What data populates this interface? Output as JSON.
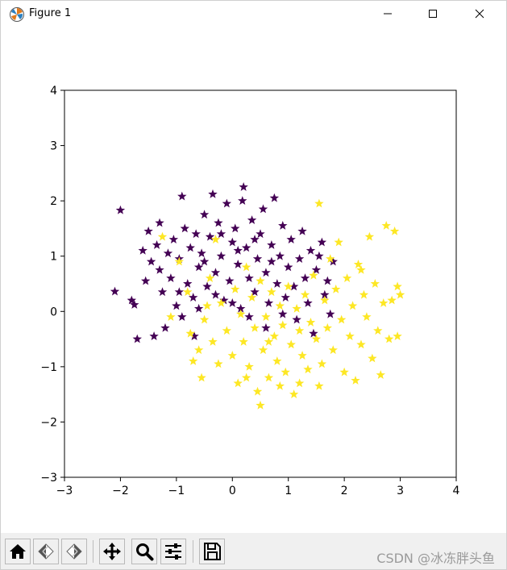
{
  "window": {
    "title": "Figure 1",
    "icon": "matplotlib-icon",
    "controls": [
      "minimize-icon",
      "maximize-icon",
      "close-icon"
    ]
  },
  "toolbar": {
    "buttons": [
      {
        "name": "home-button",
        "icon": "home-icon"
      },
      {
        "name": "back-button",
        "icon": "back-arrow-icon"
      },
      {
        "name": "forward-button",
        "icon": "forward-arrow-icon"
      },
      {
        "name": "pan-button",
        "icon": "move-arrows-icon"
      },
      {
        "name": "zoom-button",
        "icon": "magnifier-icon"
      },
      {
        "name": "configure-subplots-button",
        "icon": "sliders-icon"
      },
      {
        "name": "save-button",
        "icon": "floppy-disk-icon"
      }
    ]
  },
  "watermark": "CSDN @冰冻胖头鱼",
  "chart_data": {
    "type": "scatter",
    "marker": "star",
    "title": "",
    "xlabel": "",
    "ylabel": "",
    "xlim": [
      -3,
      4
    ],
    "ylim": [
      -3,
      4
    ],
    "xticks": [
      "−3",
      "−2",
      "−1",
      "0",
      "1",
      "2",
      "3",
      "4"
    ],
    "yticks": [
      "−3",
      "−2",
      "−1",
      "0",
      "1",
      "2",
      "3",
      "4"
    ],
    "grid": false,
    "legend": false,
    "series": [
      {
        "color": "#440154",
        "points": [
          [
            -2.0,
            1.83
          ],
          [
            -2.1,
            0.36
          ],
          [
            -1.8,
            0.2
          ],
          [
            -1.75,
            0.12
          ],
          [
            -1.7,
            -0.5
          ],
          [
            -1.55,
            0.55
          ],
          [
            -1.5,
            1.45
          ],
          [
            -1.45,
            0.9
          ],
          [
            -1.4,
            -0.45
          ],
          [
            -1.35,
            1.2
          ],
          [
            -1.3,
            0.75
          ],
          [
            -1.25,
            0.35
          ],
          [
            -1.2,
            -0.3
          ],
          [
            -1.15,
            1.05
          ],
          [
            -1.1,
            0.6
          ],
          [
            -1.05,
            1.3
          ],
          [
            -1.0,
            0.1
          ],
          [
            -0.95,
            0.95
          ],
          [
            -0.9,
            2.08
          ],
          [
            -0.9,
            -0.1
          ],
          [
            -0.85,
            1.5
          ],
          [
            -0.8,
            0.5
          ],
          [
            -0.75,
            1.15
          ],
          [
            -0.7,
            0.25
          ],
          [
            -0.68,
            -0.45
          ],
          [
            -0.65,
            1.4
          ],
          [
            -0.6,
            0.8
          ],
          [
            -0.55,
            1.05
          ],
          [
            -0.5,
            1.75
          ],
          [
            -0.45,
            0.45
          ],
          [
            -0.4,
            1.35
          ],
          [
            -0.35,
            2.12
          ],
          [
            -0.3,
            0.7
          ],
          [
            -0.25,
            1.6
          ],
          [
            -0.2,
            1.0
          ],
          [
            -0.15,
            0.2
          ],
          [
            -0.1,
            1.95
          ],
          [
            -0.05,
            0.55
          ],
          [
            0.0,
            1.25
          ],
          [
            0.05,
            1.5
          ],
          [
            0.1,
            0.85
          ],
          [
            0.15,
            0.05
          ],
          [
            0.18,
            2.0
          ],
          [
            0.2,
            2.25
          ],
          [
            0.25,
            1.15
          ],
          [
            0.3,
            0.6
          ],
          [
            0.35,
            1.65
          ],
          [
            0.4,
            0.35
          ],
          [
            0.45,
            0.95
          ],
          [
            0.5,
            1.4
          ],
          [
            0.55,
            1.85
          ],
          [
            0.6,
            0.7
          ],
          [
            0.65,
            0.15
          ],
          [
            0.7,
            1.2
          ],
          [
            0.75,
            2.05
          ],
          [
            0.8,
            0.5
          ],
          [
            0.85,
            1.0
          ],
          [
            0.9,
            1.55
          ],
          [
            0.95,
            0.25
          ],
          [
            1.0,
            0.8
          ],
          [
            1.05,
            1.3
          ],
          [
            1.1,
            0.45
          ],
          [
            1.15,
            -0.15
          ],
          [
            1.2,
            0.95
          ],
          [
            1.25,
            1.45
          ],
          [
            1.3,
            0.6
          ],
          [
            1.35,
            0.15
          ],
          [
            1.4,
            1.1
          ],
          [
            1.45,
            -0.4
          ],
          [
            1.5,
            0.75
          ],
          [
            1.55,
            1.0
          ],
          [
            1.6,
            1.25
          ],
          [
            1.65,
            0.3
          ],
          [
            1.7,
            0.55
          ],
          [
            1.75,
            -0.05
          ],
          [
            1.8,
            0.9
          ],
          [
            -1.6,
            1.1
          ],
          [
            -1.3,
            1.6
          ],
          [
            -0.95,
            0.35
          ],
          [
            -0.6,
            0.05
          ],
          [
            -0.3,
            0.3
          ],
          [
            0.0,
            0.15
          ],
          [
            0.3,
            -0.1
          ],
          [
            0.6,
            -0.3
          ],
          [
            0.9,
            -0.05
          ],
          [
            -0.2,
            1.4
          ],
          [
            0.1,
            1.1
          ],
          [
            0.4,
            1.3
          ],
          [
            0.7,
            0.9
          ],
          [
            -0.5,
            0.9
          ]
        ]
      },
      {
        "color": "#fde725",
        "points": [
          [
            -1.25,
            1.35
          ],
          [
            -1.1,
            -0.1
          ],
          [
            -0.95,
            0.9
          ],
          [
            -0.75,
            -0.4
          ],
          [
            -0.7,
            -0.9
          ],
          [
            -0.6,
            -0.7
          ],
          [
            -0.55,
            -1.2
          ],
          [
            -0.5,
            -0.15
          ],
          [
            -0.4,
            0.6
          ],
          [
            -0.35,
            -0.55
          ],
          [
            -0.3,
            1.3
          ],
          [
            -0.25,
            -0.95
          ],
          [
            -0.2,
            0.15
          ],
          [
            -0.1,
            -0.35
          ],
          [
            0.0,
            -0.8
          ],
          [
            0.05,
            0.4
          ],
          [
            0.1,
            -1.3
          ],
          [
            0.15,
            -0.05
          ],
          [
            0.2,
            -0.55
          ],
          [
            0.25,
            0.8
          ],
          [
            0.3,
            -1.0
          ],
          [
            0.35,
            0.25
          ],
          [
            0.4,
            -0.3
          ],
          [
            0.45,
            -1.45
          ],
          [
            0.5,
            0.55
          ],
          [
            0.55,
            -0.7
          ],
          [
            0.6,
            -0.1
          ],
          [
            0.65,
            -1.2
          ],
          [
            0.7,
            0.35
          ],
          [
            0.75,
            -0.45
          ],
          [
            0.8,
            -0.9
          ],
          [
            0.85,
            0.1
          ],
          [
            0.9,
            -0.25
          ],
          [
            0.95,
            -1.1
          ],
          [
            1.0,
            0.45
          ],
          [
            1.05,
            -0.6
          ],
          [
            1.1,
            -1.5
          ],
          [
            1.15,
            0.05
          ],
          [
            1.2,
            -0.35
          ],
          [
            1.25,
            -0.8
          ],
          [
            1.3,
            0.3
          ],
          [
            1.35,
            -1.05
          ],
          [
            1.4,
            -0.2
          ],
          [
            1.45,
            0.65
          ],
          [
            1.5,
            -0.5
          ],
          [
            1.55,
            1.95
          ],
          [
            1.6,
            -0.95
          ],
          [
            1.65,
            0.2
          ],
          [
            1.7,
            -0.3
          ],
          [
            1.75,
            0.95
          ],
          [
            1.8,
            -0.7
          ],
          [
            1.85,
            0.4
          ],
          [
            1.9,
            1.25
          ],
          [
            1.95,
            -0.15
          ],
          [
            2.0,
            -1.1
          ],
          [
            2.05,
            0.6
          ],
          [
            2.1,
            -0.45
          ],
          [
            2.15,
            0.1
          ],
          [
            2.2,
            -1.25
          ],
          [
            2.25,
            0.85
          ],
          [
            2.3,
            -0.6
          ],
          [
            2.35,
            0.3
          ],
          [
            2.4,
            -0.1
          ],
          [
            2.45,
            1.35
          ],
          [
            2.5,
            -0.85
          ],
          [
            2.55,
            0.5
          ],
          [
            2.6,
            -0.35
          ],
          [
            2.65,
            -1.15
          ],
          [
            2.7,
            0.15
          ],
          [
            2.75,
            1.55
          ],
          [
            2.8,
            -0.5
          ],
          [
            2.85,
            0.2
          ],
          [
            2.9,
            1.45
          ],
          [
            2.95,
            0.45
          ],
          [
            3.0,
            0.3
          ],
          [
            0.5,
            -1.7
          ],
          [
            1.55,
            -1.35
          ],
          [
            0.25,
            -1.2
          ],
          [
            2.95,
            -0.45
          ],
          [
            2.3,
            0.75
          ],
          [
            -0.8,
            0.35
          ],
          [
            -0.45,
            0.1
          ],
          [
            0.85,
            -1.35
          ],
          [
            1.2,
            -1.3
          ],
          [
            0.65,
            -0.55
          ]
        ]
      }
    ]
  }
}
